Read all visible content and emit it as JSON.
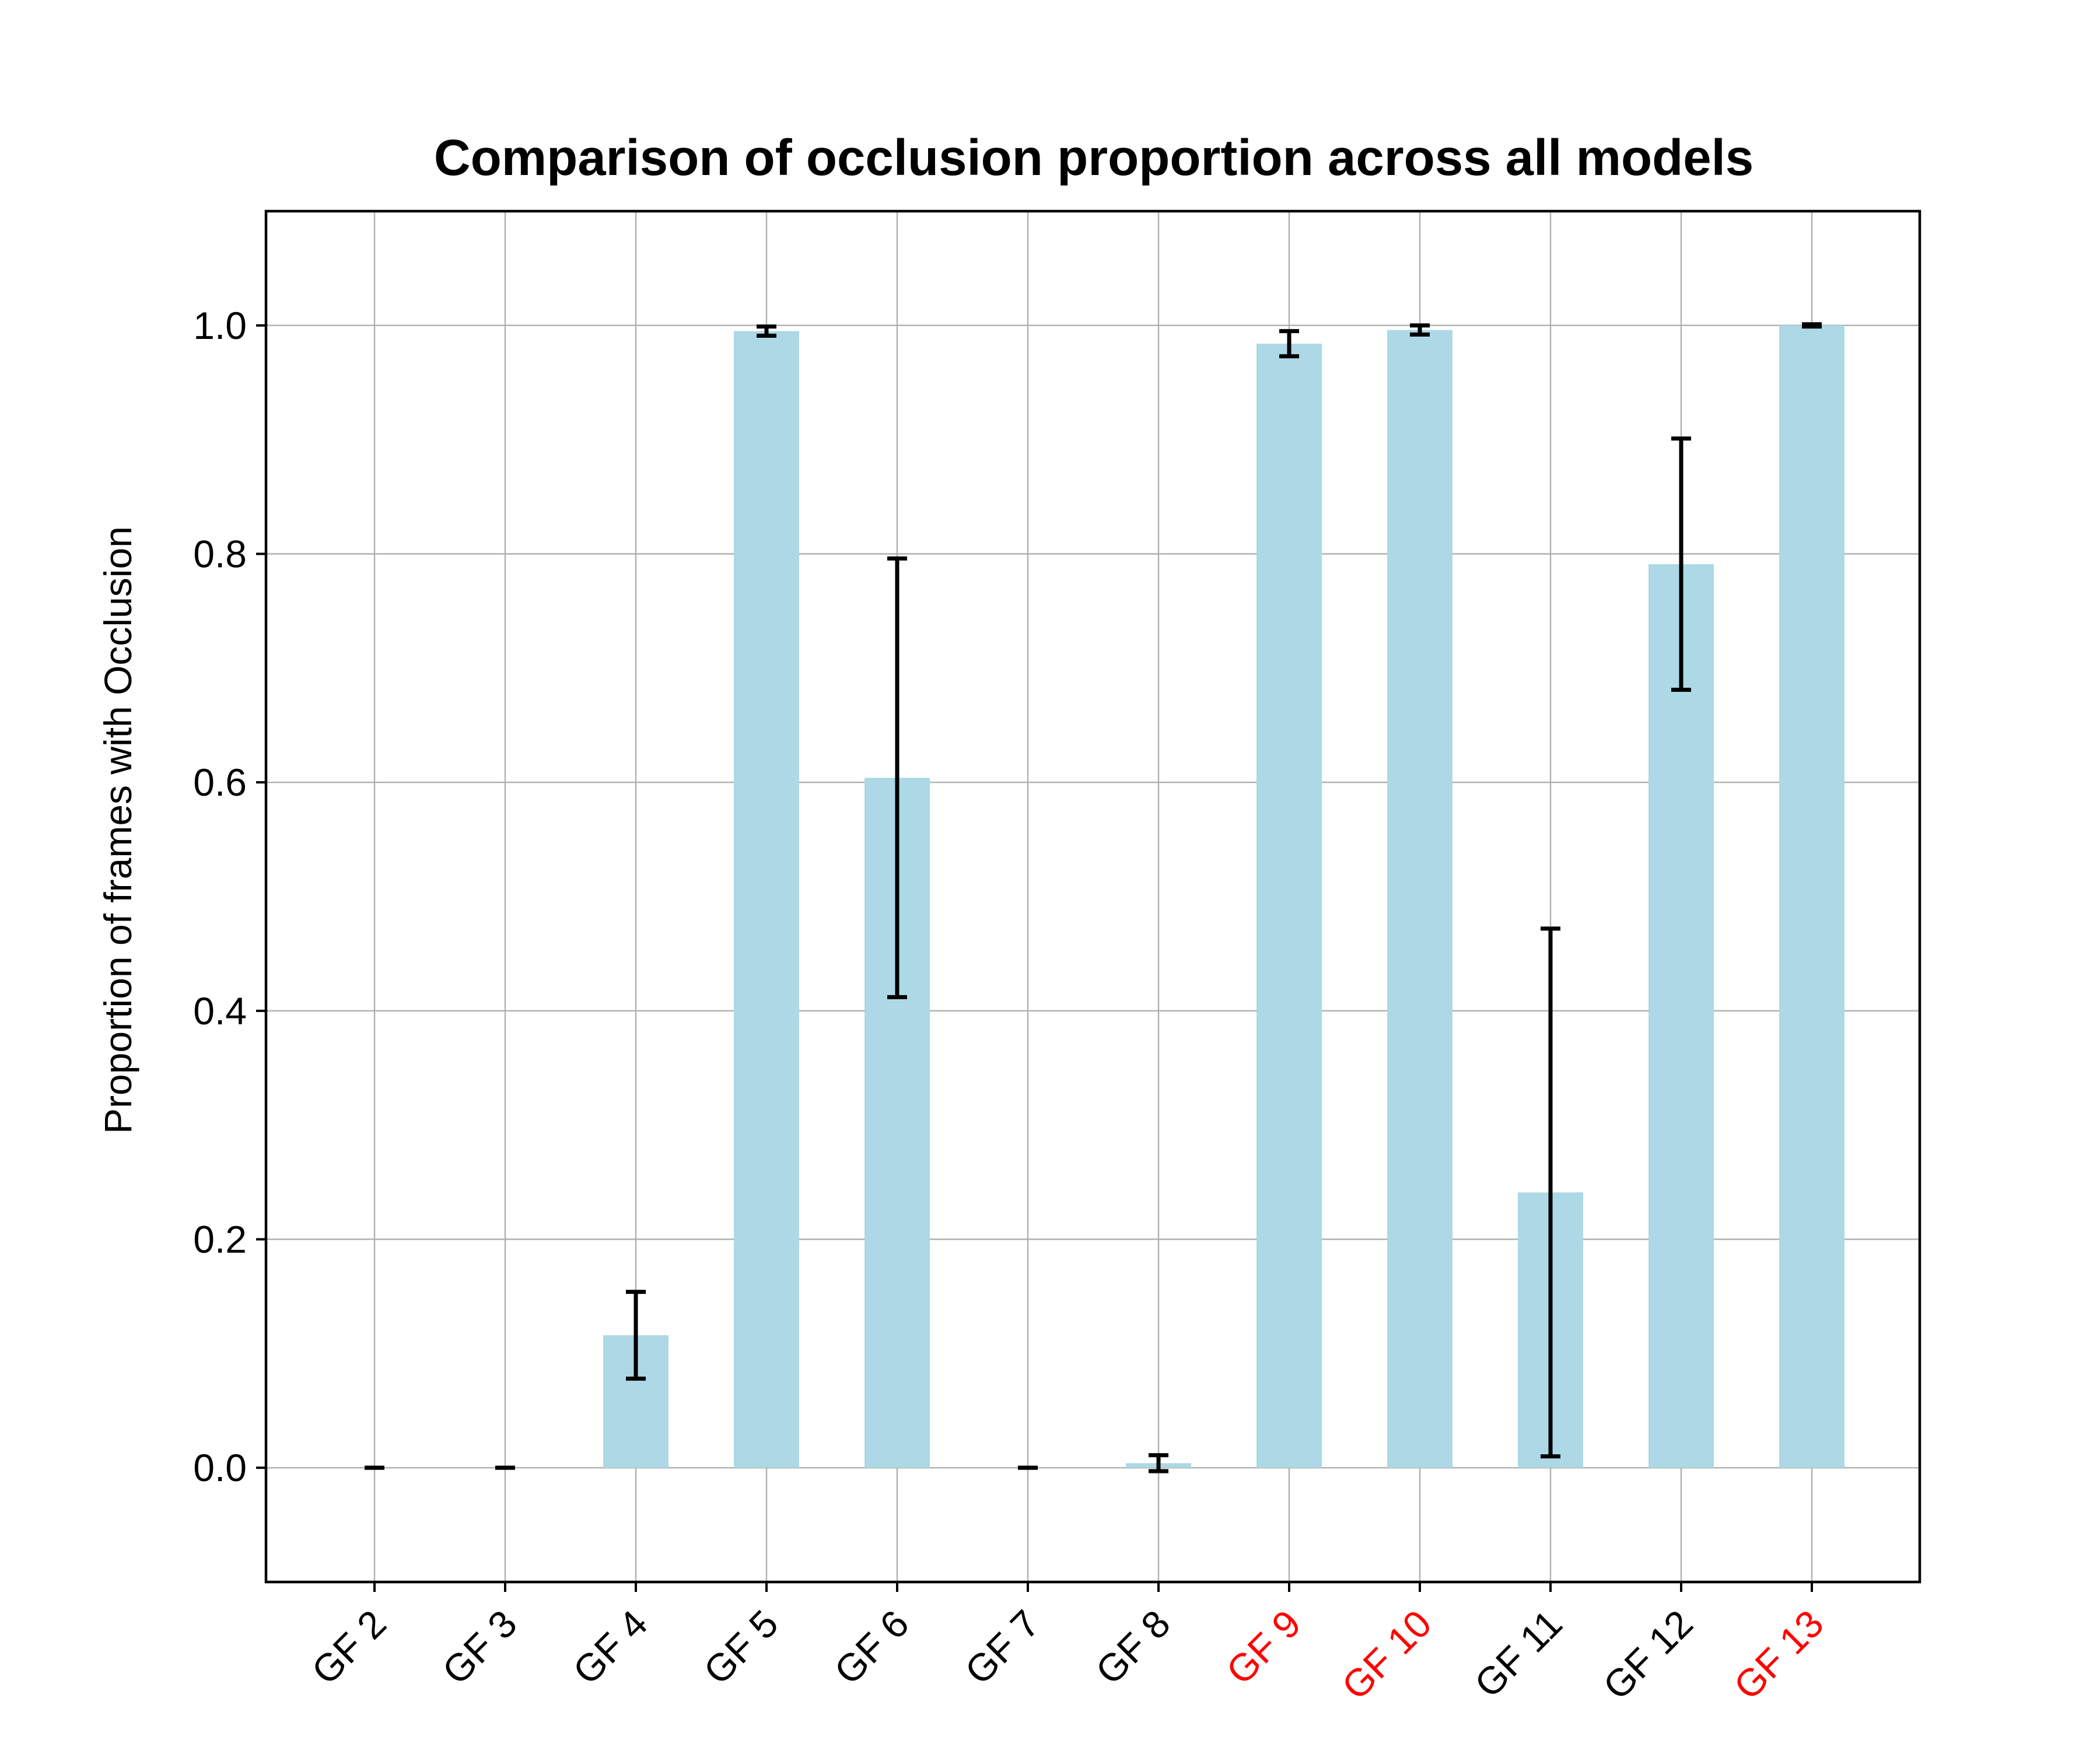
{
  "chart_data": {
    "type": "bar",
    "title": "Comparison of occlusion proportion across all models",
    "xlabel": "",
    "ylabel": "Proportion of frames with Occlusion",
    "ylim": [
      -0.1,
      1.1
    ],
    "yticks": [
      "0.0",
      "0.2",
      "0.4",
      "0.6",
      "0.8",
      "1.0"
    ],
    "grid": true,
    "bar_color": "#add8e6",
    "errorbar_color": "#000000",
    "highlight_color": "#ff0000",
    "default_label_color": "#000000",
    "categories": [
      "GF 2",
      "GF 3",
      "GF 4",
      "GF 5",
      "GF 6",
      "GF 7",
      "GF 8",
      "GF 9",
      "GF 10",
      "GF 11",
      "GF 12",
      "GF 13"
    ],
    "highlighted": [
      false,
      false,
      false,
      false,
      false,
      false,
      false,
      true,
      true,
      false,
      false,
      true
    ],
    "values": [
      0.0,
      0.0,
      0.116,
      0.995,
      0.604,
      0.0,
      0.004,
      0.984,
      0.996,
      0.241,
      0.791,
      1.0
    ],
    "errors": [
      0.0,
      0.0,
      0.038,
      0.004,
      0.192,
      0.0,
      0.007,
      0.011,
      0.004,
      0.231,
      0.11,
      0.001
    ]
  }
}
